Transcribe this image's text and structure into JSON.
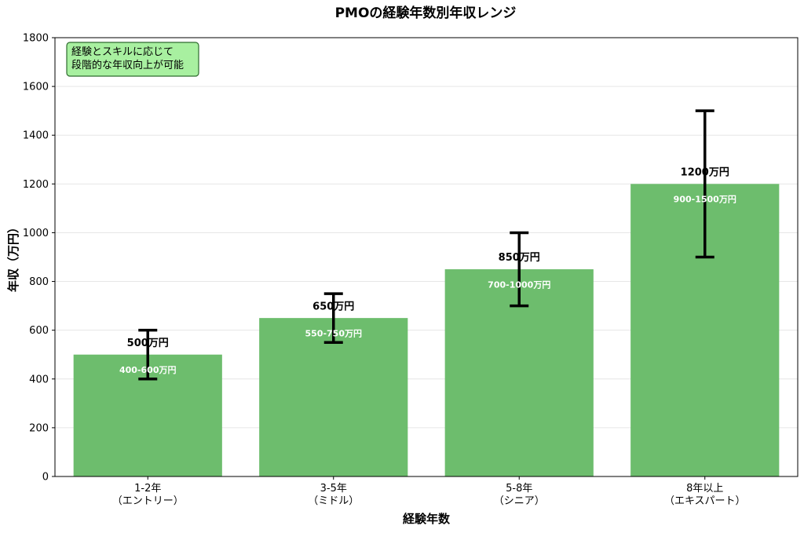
{
  "chart_data": {
    "type": "bar",
    "title": "PMOの経験年数別年収レンジ",
    "xlabel": "経験年数",
    "ylabel": "年収（万円）",
    "ylim": [
      0,
      1800
    ],
    "yticks": [
      0,
      200,
      400,
      600,
      800,
      1000,
      1200,
      1400,
      1600,
      1800
    ],
    "grid": "y",
    "categories": [
      [
        "1-2年",
        "（エントリー）"
      ],
      [
        "3-5年",
        "（ミドル）"
      ],
      [
        "5-8年",
        "（シニア）"
      ],
      [
        "8年以上",
        "（エキスパート）"
      ]
    ],
    "values": [
      500,
      650,
      850,
      1200
    ],
    "value_labels": [
      "500万円",
      "650万円",
      "850万円",
      "1200万円"
    ],
    "error_low": [
      400,
      550,
      700,
      900
    ],
    "error_high": [
      600,
      750,
      1000,
      1500
    ],
    "range_labels": [
      "400-600万円",
      "550-750万円",
      "700-1000万円",
      "900-1500万円"
    ],
    "bar_color": "#6dbd6d",
    "errorbar_color": "#000000",
    "annotation": {
      "lines": [
        "経験とスキルに応じて",
        "段階的な年収向上が可能"
      ],
      "background": "#a8f0a0",
      "border": "#2f6b2f",
      "placement": "top-left"
    }
  }
}
